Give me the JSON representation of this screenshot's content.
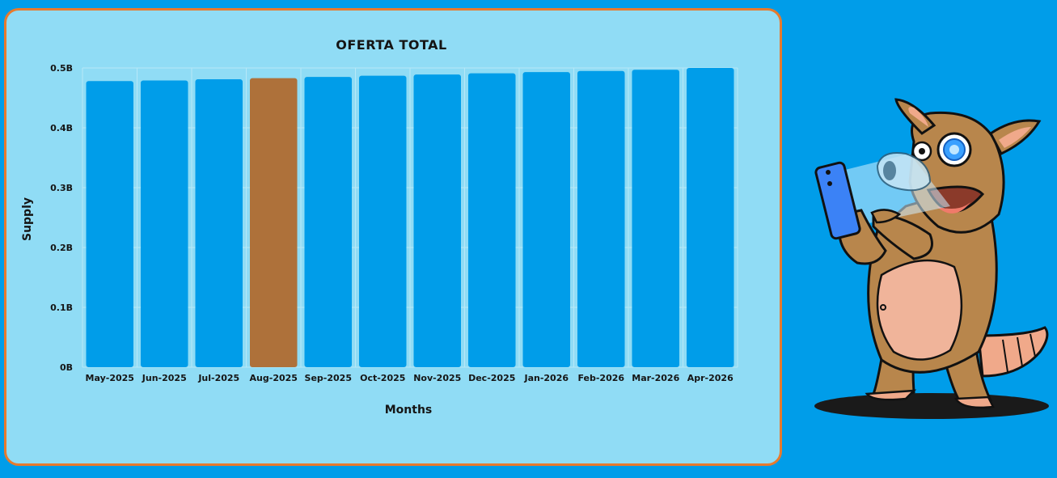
{
  "chart_data": {
    "type": "bar",
    "title": "OFERTA TOTAL",
    "xlabel": "Months",
    "ylabel": "Supply",
    "categories": [
      "May-2025",
      "Jun-2025",
      "Jul-2025",
      "Aug-2025",
      "Sep-2025",
      "Oct-2025",
      "Nov-2025",
      "Dec-2025",
      "Jan-2026",
      "Feb-2026",
      "Mar-2026",
      "Apr-2026"
    ],
    "values": [
      0.478,
      0.479,
      0.481,
      0.483,
      0.485,
      0.487,
      0.489,
      0.491,
      0.493,
      0.495,
      0.497,
      0.5
    ],
    "highlight_index": 3,
    "ylim": [
      0,
      0.5
    ],
    "yticks": [
      0,
      0.1,
      0.2,
      0.3,
      0.4,
      0.5
    ],
    "ytick_labels": [
      "0B",
      "0.1B",
      "0.2B",
      "0.3B",
      "0.4B",
      "0.5B"
    ],
    "grid": true,
    "colors": {
      "bar": "#009de9",
      "highlight": "#ae713a",
      "background": "#90dcf5",
      "border": "#e87a2c",
      "grid": "#b7e8f8"
    }
  },
  "mascot": {
    "icon": "armadillo-mascot-with-phone-icon"
  }
}
